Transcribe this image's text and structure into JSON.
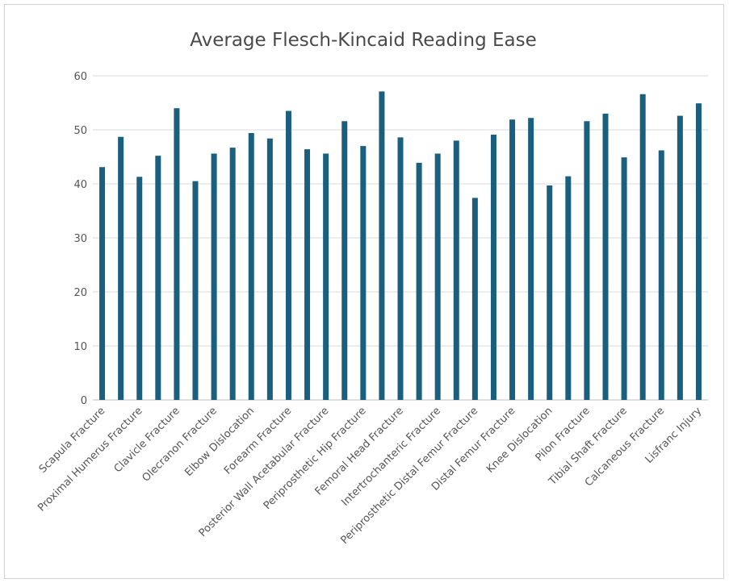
{
  "chart_data": {
    "type": "bar",
    "title": "Average Flesch-Kincaid Reading Ease",
    "categories": [
      "Scapula Fracture",
      null,
      "Proximal Humerus Fracture",
      null,
      "Clavicle Fracture",
      null,
      "Olecranon Fracture",
      null,
      "Elbow Dislocation",
      null,
      "Forearm Fracture",
      null,
      "Posterior Wall Acetabular Fracture",
      null,
      "Periprosthetic Hip Fracture",
      null,
      "Femoral Head Fracture",
      null,
      "Intertrochanteric Fracture",
      null,
      "Periprosthetic Distal Femur Fracture",
      null,
      "Distal Femur Fracture",
      null,
      "Knee Dislocation",
      null,
      "Pilon Fracture",
      null,
      "Tibial Shaft Fracture",
      null,
      "Calcaneous Fracture",
      null,
      "Lisfranc Injury"
    ],
    "values": [
      43.1,
      48.7,
      41.3,
      45.2,
      54.0,
      40.5,
      45.6,
      46.7,
      49.4,
      48.4,
      53.5,
      46.4,
      45.6,
      51.6,
      47.0,
      57.1,
      48.6,
      43.9,
      45.6,
      48.0,
      37.4,
      49.1,
      51.9,
      52.2,
      39.7,
      41.4,
      51.6,
      53.0,
      44.9,
      56.6,
      46.2,
      52.6,
      54.9
    ],
    "color": "#1b5f7e",
    "ylim": [
      0,
      60
    ],
    "yticks": [
      0,
      10,
      20,
      30,
      40,
      50,
      60
    ],
    "grid": true
  }
}
